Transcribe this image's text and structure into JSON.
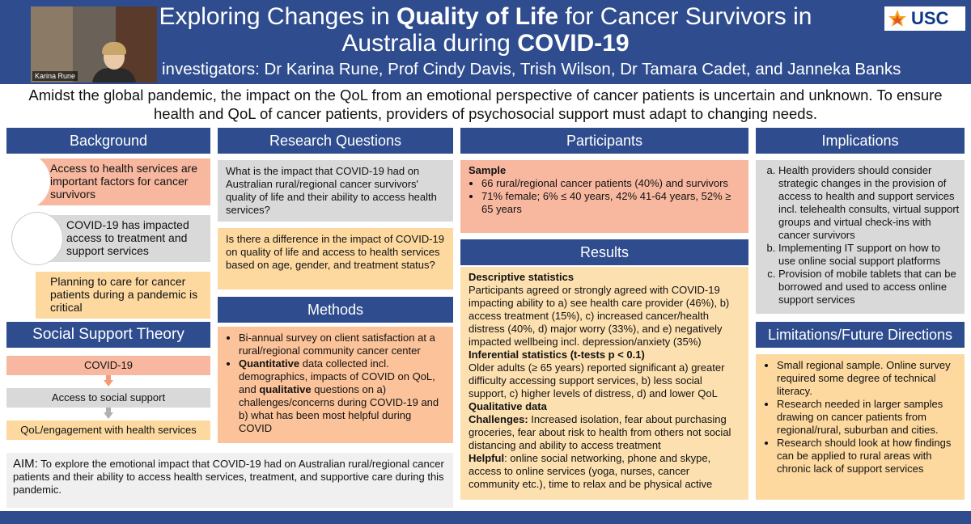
{
  "header": {
    "title_part1": "Exploring Changes in ",
    "title_bold1": "Quality of Life",
    "title_part2": " for Cancer Survivors in",
    "title_line2": "Australia during ",
    "title_bold2": "COVID-19",
    "investigators": "investigators: Dr Karina Rune, Prof Cindy Davis, Trish Wilson, Dr Tamara Cadet, and Janneka Banks",
    "video_name": "Karina Rune",
    "logo_text": "USC"
  },
  "intro": "Amidst the global pandemic, the impact on the QoL from an emotional perspective of cancer patients is uncertain and unknown. To ensure health and QoL of cancer patients, providers of psychosocial support must adapt to changing needs.",
  "background": {
    "heading": "Background",
    "items": [
      "Access to health services are important factors for cancer survivors",
      "COVID-19 has impacted access to treatment and support services",
      "Planning to care for cancer patients during a pandemic is critical"
    ]
  },
  "social_support": {
    "heading": "Social Support Theory",
    "steps": [
      "COVID-19",
      "Access to social support",
      "QoL/engagement with health services"
    ]
  },
  "aim": {
    "label": "AIM:",
    "text": " To explore the emotional impact that COVID-19 had on Australian rural/regional cancer patients and their ability to access health services, treatment, and supportive care during this pandemic."
  },
  "research_questions": {
    "heading": "Research Questions",
    "q1": "What is the impact that COVID-19 had on Australian rural/regional cancer survivors' quality of life and their ability to access health services?",
    "q2": "Is there a difference in the impact of COVID-19 on quality of life and access to health services based on age, gender, and treatment status?"
  },
  "methods": {
    "heading": "Methods",
    "item1": "Bi-annual survey on client satisfaction at a rural/regional community cancer center",
    "item2_bold1": "Quantitative",
    "item2_text1": " data collected incl. demographics, impacts of COVID on QoL, and ",
    "item2_bold2": "qualitative",
    "item2_text2": " questions on a) challenges/concerns during COVID-19 and b) what has been most helpful during COVID"
  },
  "participants": {
    "heading": "Participants",
    "sample_label": "Sample",
    "items": [
      "66 rural/regional cancer patients (40%) and survivors",
      "71% female; 6% ≤ 40 years, 42% 41-64 years, 52% ≥ 65 years"
    ]
  },
  "results": {
    "heading": "Results",
    "desc_label": "Descriptive statistics",
    "desc_text": "Participants agreed or strongly agreed with COVID-19 impacting ability to a) see health care provider (46%), b) access treatment (15%), c) increased cancer/health distress (40%, d) major worry (33%), and e) negatively impacted wellbeing incl. depression/anxiety (35%)",
    "inf_label": "Inferential statistics (t-tests p < 0.1)",
    "inf_text": "Older adults (≥ 65 years) reported significant a) greater difficulty accessing support services, b) less social support, c) higher levels of distress, d) and lower QoL",
    "qual_label": "Qualitative data",
    "chal_label": "Challenges:",
    "chal_text": " Increased isolation, fear about purchasing groceries, fear about risk to health from others not social distancing and ability to access treatment",
    "help_label": "Helpful",
    "help_text": ": online social networking, phone and skype, access to online services (yoga, nurses, cancer community etc.), time to relax and be physical active"
  },
  "implications": {
    "heading": "Implications",
    "items": [
      "Health providers should consider strategic changes in the provision of access to health and support services incl. telehealth consults, virtual support groups and virtual check-ins with cancer survivors",
      "Implementing IT support on how to use online social support platforms",
      "Provision of mobile tablets that can be borrowed and used to access online support services"
    ]
  },
  "limitations": {
    "heading": "Limitations/Future Directions",
    "items": [
      "Small regional sample. Online survey required some degree of technical literacy.",
      "Research needed in larger samples drawing on cancer patients from regional/rural, suburban and cities.",
      "Research should look at how findings can be applied to rural areas with chronic lack of support services"
    ]
  },
  "colors": {
    "banner_blue": "#2f4d8e",
    "salmon": "#f8b8a0",
    "peach": "#fcc39a",
    "grey": "#d9d9d9",
    "yellow": "#fdd9a0"
  }
}
